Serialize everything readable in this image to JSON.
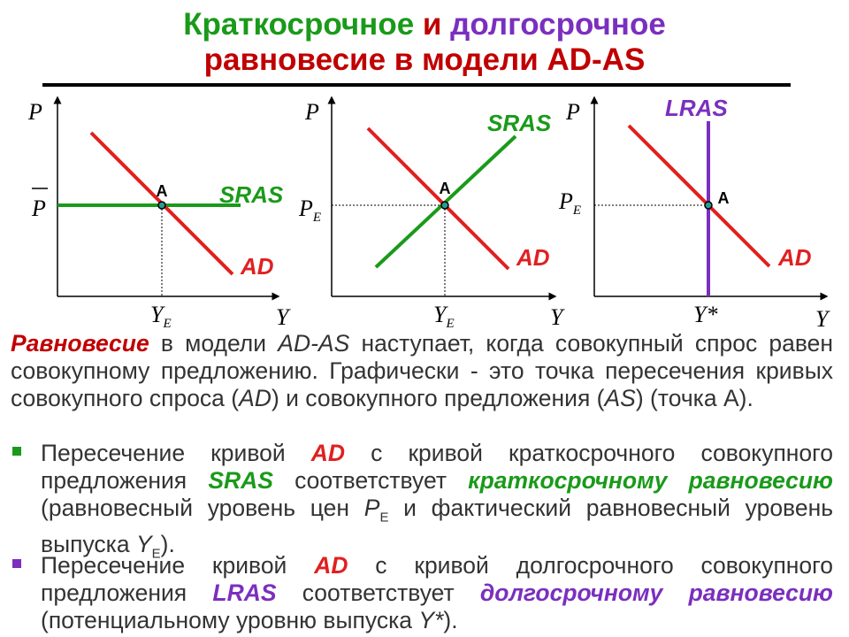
{
  "title": {
    "line1_part1": "Краткосрочное",
    "line1_part2": " и ",
    "line1_part3": "долгосрочное",
    "line2": "равновесие в модели AD-AS"
  },
  "colors": {
    "green": "#1a9a1a",
    "red": "#e02020",
    "purple": "#7b2fbe",
    "title_red": "#c00000"
  },
  "diagrams": [
    {
      "y_axis_label": "P",
      "x_axis_label": "Y",
      "price_label": "P",
      "price_overbar": true,
      "output_label": "Y",
      "output_sub": "E",
      "curves": [
        "AD",
        "SRAS"
      ],
      "point": "A"
    },
    {
      "y_axis_label": "P",
      "x_axis_label": "Y",
      "price_label": "P",
      "price_sub": "E",
      "output_label": "Y",
      "output_sub": "E",
      "curves": [
        "AD",
        "SRAS"
      ],
      "point": "A"
    },
    {
      "y_axis_label": "P",
      "x_axis_label": "Y",
      "price_label": "P",
      "price_sub": "E",
      "output_label": "Y*",
      "curves": [
        "AD",
        "LRAS"
      ],
      "point": "A"
    }
  ],
  "paragraph": {
    "term": "Равновесие",
    "text1": " в модели ",
    "model": "AD-AS",
    "text2": " наступает, когда совокупный спрос равен совокупному предложению. Графически - это точка пересечения кривых совокупного спроса (",
    "ad": "AD",
    "text3": ") и совокупного предложения (",
    "as": "AS",
    "text4": ") (точка А)."
  },
  "bullet1": {
    "text1": "Пересечение кривой ",
    "ad": "AD",
    "text2": " с кривой краткосрочного совокупного предложения ",
    "sras": "SRAS",
    "text3": " соответствует ",
    "emph": "краткосрочному равновесию",
    "text4": " (равновесный уровень цен ",
    "p": "P",
    "p_sub": "E",
    "text5": " и фактический равновесный уровень выпуска ",
    "y": "Y",
    "y_sub": "E",
    "text6": ")."
  },
  "bullet2": {
    "text1": "Пересечение кривой ",
    "ad": "AD",
    "text2": " с кривой долгосрочного совокупного предложения ",
    "lras": "LRAS",
    "text3": " соответствует ",
    "emph": "долгосрочному равновесию",
    "text4": " (потенциальному уровню выпуска ",
    "ystar": "Y*",
    "text5": ")."
  }
}
